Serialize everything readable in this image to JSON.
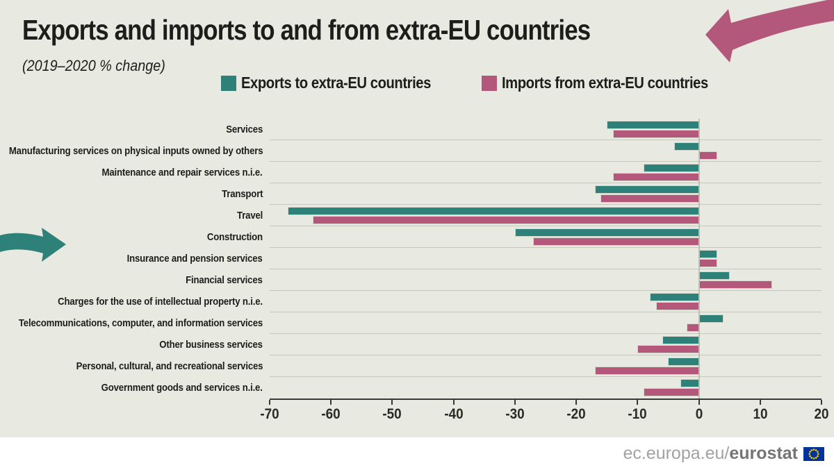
{
  "header": {
    "title": "Exports and imports to and from extra-EU countries",
    "subtitle": "(2019–2020 % change)"
  },
  "legend": [
    {
      "label": "Exports to extra-EU countries",
      "color": "#2e8179"
    },
    {
      "label": "Imports from extra-EU countries",
      "color": "#b4587b"
    }
  ],
  "chart_data": {
    "type": "bar",
    "orientation": "horizontal",
    "title": "Exports and imports to and from extra-EU countries",
    "subtitle": "(2019–2020 % change)",
    "categories": [
      "Services",
      "Manufacturing services on physical inputs owned by others",
      "Maintenance and repair services n.i.e.",
      "Transport",
      "Travel",
      "Construction",
      "Insurance and pension services",
      "Financial services",
      "Charges for the use of intellectual property n.i.e.",
      "Telecommunications, computer, and information services",
      "Other business services",
      "Personal, cultural, and recreational services",
      "Government goods and services n.i.e."
    ],
    "series": [
      {
        "name": "Exports to extra-EU countries",
        "color": "#2e8179",
        "values": [
          -15,
          -4,
          -9,
          -17,
          -67,
          -30,
          3,
          5,
          -8,
          4,
          -6,
          -5,
          -3
        ]
      },
      {
        "name": "Imports from extra-EU countries",
        "color": "#b4587b",
        "values": [
          -14,
          3,
          -14,
          -16,
          -63,
          -27,
          3,
          12,
          -7,
          -2,
          -10,
          -17,
          -9
        ]
      }
    ],
    "xlim": [
      -70,
      20
    ],
    "xticks": [
      -70,
      -60,
      -50,
      -40,
      -30,
      -20,
      -10,
      0,
      10,
      20
    ],
    "grid": "horizontal-row-separators",
    "legend_position": "top"
  },
  "decorations": {
    "top_right_arrow_color": "#b4587b",
    "left_arrow_color": "#2e8179"
  },
  "footer": {
    "url_plain": "ec.europa.eu/",
    "url_bold": "eurostat",
    "flag_blue": "#003399",
    "flag_star": "#ffcc00"
  },
  "colors": {
    "background": "#e8e9e1",
    "separator": "#c6c7bb",
    "axis": "#383838",
    "zero_line": "#bfc0b5",
    "footer_background": "#ffffff"
  }
}
